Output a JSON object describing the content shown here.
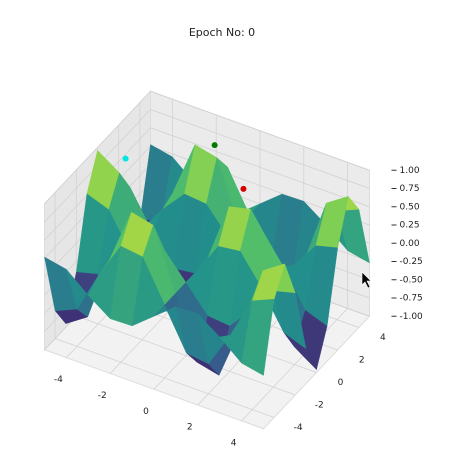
{
  "chart_data": {
    "type": "surface3d",
    "title": "Epoch No: 0",
    "x": [
      -5,
      -4,
      -3,
      -2,
      -1,
      0,
      1,
      2,
      3,
      4,
      5
    ],
    "y": [
      -5,
      -4,
      -3,
      -2,
      -1,
      0,
      1,
      2,
      3,
      4,
      5
    ],
    "z": [
      [
        0.27,
        0.21,
        -0.04,
        -0.25,
        -0.24,
        0,
        0.24,
        0.25,
        0.04,
        -0.21,
        -0.27
      ],
      [
        -0.62,
        -0.49,
        0.09,
        0.59,
        0.55,
        0,
        -0.55,
        -0.59,
        -0.09,
        0.49,
        0.62
      ],
      [
        -0.95,
        -0.75,
        0.14,
        0.9,
        0.83,
        0,
        -0.83,
        -0.9,
        -0.14,
        0.75,
        0.95
      ],
      [
        -0.4,
        -0.32,
        0.06,
        0.38,
        0.35,
        0,
        -0.35,
        -0.38,
        -0.06,
        0.32,
        0.4
      ],
      [
        0.52,
        0.41,
        -0.08,
        -0.49,
        -0.45,
        0,
        0.45,
        0.49,
        0.08,
        -0.41,
        -0.52
      ],
      [
        0.96,
        0.76,
        -0.14,
        -0.91,
        -0.84,
        0,
        0.84,
        0.91,
        0.14,
        -0.76,
        -0.96
      ],
      [
        0.52,
        0.41,
        -0.08,
        -0.49,
        -0.45,
        0,
        0.45,
        0.49,
        0.08,
        -0.41,
        -0.52
      ],
      [
        -0.4,
        -0.32,
        0.06,
        0.38,
        0.35,
        0,
        -0.35,
        -0.38,
        -0.06,
        0.32,
        0.4
      ],
      [
        -0.95,
        -0.75,
        0.14,
        0.9,
        0.83,
        0,
        -0.83,
        -0.9,
        -0.14,
        0.75,
        0.95
      ],
      [
        -0.62,
        -0.49,
        0.09,
        0.59,
        0.55,
        0,
        -0.55,
        -0.59,
        -0.09,
        0.49,
        0.62
      ],
      [
        0.27,
        0.21,
        -0.04,
        -0.25,
        -0.24,
        0,
        0.24,
        0.25,
        0.04,
        -0.21,
        -0.27
      ]
    ],
    "colormap": "viridis",
    "points": [
      {
        "color": "#00e5e5",
        "x": -4.2,
        "y": 1.0,
        "z": 0.78
      },
      {
        "color": "#007a00",
        "x": -1.2,
        "y": 3.2,
        "z": 0.95
      },
      {
        "color": "#d40000",
        "x": 0.6,
        "y": 2.2,
        "z": 0.7
      }
    ],
    "xlim": [
      -5,
      5
    ],
    "ylim": [
      -5,
      5
    ],
    "zlim": [
      -1,
      1
    ],
    "xticks": [
      -4,
      -2,
      0,
      2,
      4
    ],
    "yticks": [
      -4,
      -2,
      0,
      2,
      4
    ],
    "zticks": [
      {
        "value": -1,
        "label": "-1.00"
      },
      {
        "value": -0.75,
        "label": "-0.75"
      },
      {
        "value": -0.5,
        "label": "-0.50"
      },
      {
        "value": -0.25,
        "label": "-0.25"
      },
      {
        "value": 0,
        "label": "0.00"
      },
      {
        "value": 0.25,
        "label": "0.25"
      },
      {
        "value": 0.5,
        "label": "0.50"
      },
      {
        "value": 0.75,
        "label": "0.75"
      },
      {
        "value": 1,
        "label": "1.00"
      }
    ],
    "grid": true
  }
}
